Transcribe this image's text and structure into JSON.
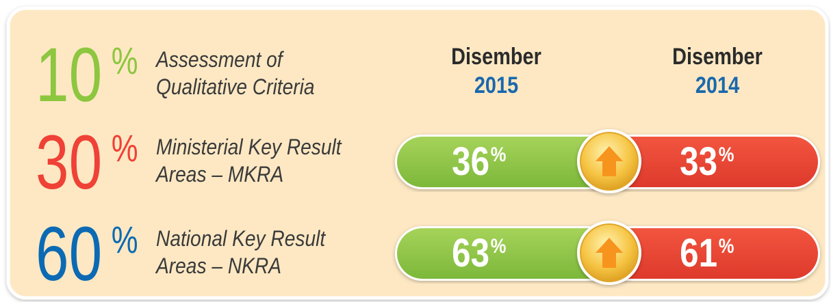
{
  "columns": [
    {
      "month": "Disember",
      "year": "2015"
    },
    {
      "month": "Disember",
      "year": "2014"
    }
  ],
  "rows": [
    {
      "weight": 10,
      "unit": "%",
      "color": "#8dc63f",
      "label": [
        "Assessment of",
        "Qualitative Criteria"
      ]
    },
    {
      "weight": 30,
      "unit": "%",
      "color": "#ef4136",
      "label": [
        "Ministerial Key Result",
        "Areas – MKRA"
      ],
      "comparison": {
        "current": {
          "value": 36,
          "unit": "%"
        },
        "previous": {
          "value": 33,
          "unit": "%"
        }
      }
    },
    {
      "weight": 60,
      "unit": "%",
      "color": "#0b6ab3",
      "label": [
        "National Key Result",
        "Areas – NKRA"
      ],
      "comparison": {
        "current": {
          "value": 63,
          "unit": "%"
        },
        "previous": {
          "value": 61,
          "unit": "%"
        }
      }
    }
  ]
}
